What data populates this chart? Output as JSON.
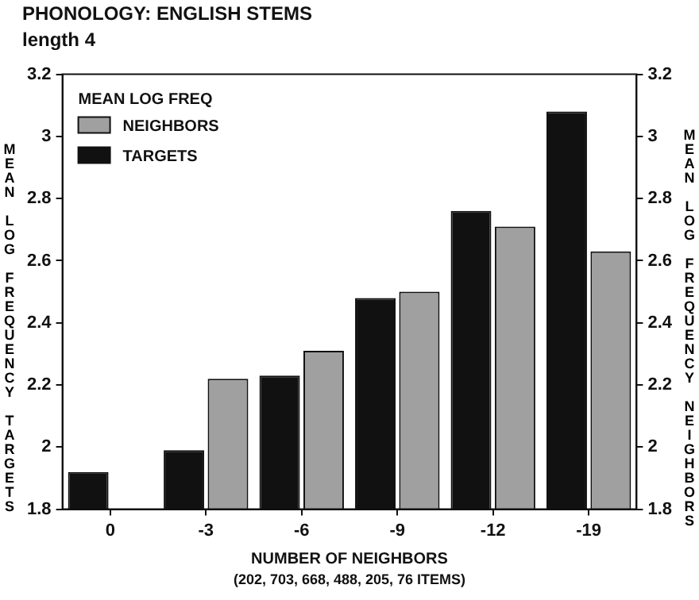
{
  "chart_data": {
    "type": "bar",
    "title": "PHONOLOGY: ENGLISH STEMS",
    "subtitle": "length 4",
    "xlabel": "NUMBER OF NEIGHBORS",
    "ylabel": "MEAN LOG FREQUENCY TARGETS",
    "y2label": "MEAN LOG FREQUENCY NEIGHBORS",
    "legend_title": "MEAN LOG FREQ",
    "annotations": [
      "(202, 703, 668, 488, 205, 76 ITEMS)"
    ],
    "categories": [
      "0",
      "-3",
      "-6",
      "-9",
      "-12",
      "-19"
    ],
    "series": [
      {
        "name": "TARGETS",
        "color": "#111111",
        "values": [
          1.92,
          1.99,
          2.23,
          2.48,
          2.76,
          3.08
        ]
      },
      {
        "name": "NEIGHBORS",
        "color": "#a0a0a0",
        "axis": "y2",
        "values": [
          null,
          2.22,
          2.31,
          2.5,
          2.71,
          2.63
        ]
      }
    ],
    "ylim": [
      1.8,
      3.2
    ],
    "yticks": [
      1.8,
      2,
      2.2,
      2.4,
      2.6,
      2.8,
      3,
      3.2
    ],
    "y2lim": [
      1.8,
      3.2
    ],
    "y2ticks": [
      1.8,
      2,
      2.2,
      2.4,
      2.6,
      2.8,
      3,
      3.2
    ],
    "grid": false,
    "legend": "top left"
  }
}
